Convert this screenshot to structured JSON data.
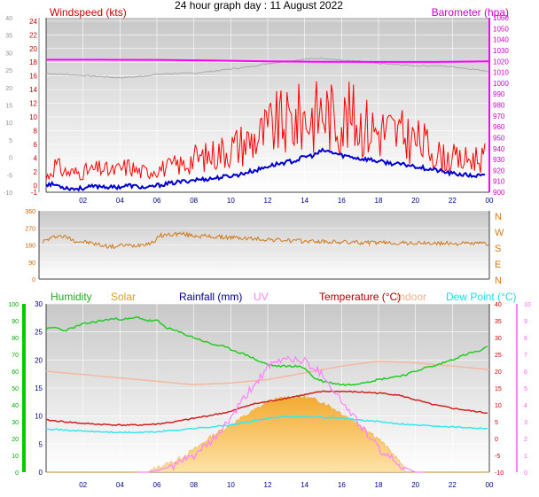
{
  "page": {
    "title": "24 hour graph day : 11 August 2022"
  },
  "colors": {
    "windspeed": "#ff0000",
    "windavg": "#0000cc",
    "barometer": "#ff00ff",
    "barohist": "#a8a8a8",
    "direction": "#d07818",
    "humidity": "#22cc22",
    "solar": "#f5b547",
    "rainfall": "#000080",
    "uv": "#ff80ff",
    "temperature": "#d02020",
    "indoor": "#f5b8a0",
    "dewpoint": "#33e8f0",
    "humidity_axis": "#00cc00",
    "plot_top": "#c8c8c8",
    "plot_bottom": "#ffffff",
    "frame": "#404040"
  },
  "chart_data": [
    {
      "id": "wind",
      "type": "line",
      "title": "",
      "left_axis_label": "Windspeed (kts)",
      "right_axis_label": "Barometer (hpa)",
      "x_ticks": [
        "02",
        "04",
        "06",
        "08",
        "10",
        "12",
        "14",
        "16",
        "18",
        "20",
        "22",
        "00"
      ],
      "y_left_ticks": [
        "-1",
        "0",
        "2",
        "4",
        "6",
        "8",
        "10",
        "12",
        "14",
        "16",
        "18",
        "20",
        "22",
        "24"
      ],
      "y_far_left_ticks": [
        "40",
        "35",
        "30",
        "25",
        "20",
        "15",
        "10",
        "5",
        "0",
        "-5",
        "-10"
      ],
      "y_right_ticks": [
        "1060",
        "1050",
        "1040",
        "1030",
        "1020",
        "1010",
        "1000",
        "990",
        "980",
        "970",
        "960",
        "950",
        "940",
        "930",
        "920",
        "910",
        "900"
      ],
      "y_left_range": [
        -1,
        24.5
      ],
      "y_right_range": [
        900,
        1060
      ],
      "x_range": [
        0,
        24
      ],
      "series": [
        {
          "name": "Windspeed (kts)",
          "x": [
            0,
            0.5,
            1,
            1.5,
            2,
            2.5,
            3,
            3.5,
            4,
            4.5,
            5,
            5.5,
            6,
            6.5,
            7,
            7.5,
            8,
            8.5,
            9,
            9.5,
            10,
            10.5,
            11,
            11.5,
            12,
            12.5,
            13,
            13.5,
            14,
            14.5,
            15,
            15.5,
            16,
            16.5,
            17,
            17.5,
            18,
            18.5,
            19,
            19.5,
            20,
            20.5,
            21,
            21.5,
            22,
            22.5,
            23
          ],
          "values": [
            1,
            3,
            2,
            1.8,
            2,
            2.2,
            2.5,
            2,
            2.4,
            2.8,
            2,
            2,
            2.5,
            2.5,
            3,
            3,
            4,
            4,
            4.5,
            5,
            5.5,
            6,
            6.5,
            7,
            8,
            9,
            9,
            9.5,
            10,
            10,
            11,
            10,
            9.5,
            10,
            9,
            8.5,
            8,
            8,
            7.5,
            7,
            6.5,
            6,
            5,
            4,
            4,
            3.5,
            4
          ]
        },
        {
          "name": "Average",
          "x": [
            0,
            0.5,
            1,
            1.5,
            2,
            2.5,
            3,
            3.5,
            4,
            4.5,
            5,
            5.5,
            6,
            6.5,
            7,
            7.5,
            8,
            8.5,
            9,
            9.5,
            10,
            10.5,
            11,
            11.5,
            12,
            12.5,
            13,
            13.5,
            14,
            14.5,
            15,
            15.5,
            16,
            16.5,
            17,
            17.5,
            18,
            18.5,
            19,
            19.5,
            20,
            20.5,
            21,
            21.5,
            22,
            22.5,
            23
          ],
          "values": [
            0.2,
            0.1,
            -0.3,
            -0.5,
            -0.4,
            -0.2,
            -0.1,
            -0.3,
            -0.2,
            0,
            -0.2,
            -0.4,
            0,
            0.2,
            0.4,
            0.6,
            0.8,
            0.9,
            1,
            1.2,
            1.4,
            1.6,
            2,
            2.3,
            2.8,
            3.1,
            3.4,
            3.6,
            4.2,
            4.4,
            5.1,
            4.8,
            4.4,
            4.2,
            3.9,
            3.8,
            3.5,
            3.3,
            3.1,
            3,
            2.8,
            2.5,
            2.3,
            2,
            1.7,
            1.6,
            1.4
          ]
        },
        {
          "name": "Barometer (hpa)",
          "x": [
            0,
            3,
            6,
            9,
            12,
            15,
            18,
            21,
            24
          ],
          "values": [
            1021.5,
            1021.5,
            1021.3,
            1020.8,
            1020,
            1019.6,
            1019.5,
            1019.5,
            1020
          ]
        },
        {
          "name": "Barometer history",
          "x": [
            0,
            1,
            2,
            3,
            4,
            5,
            6,
            7,
            8,
            9,
            10,
            11,
            12,
            13,
            14,
            15,
            16,
            17,
            18,
            19,
            20,
            21,
            22,
            23,
            24
          ],
          "values": [
            1009,
            1008,
            1007,
            1006,
            1005,
            1006,
            1008,
            1009,
            1009,
            1011,
            1013,
            1015,
            1018,
            1020,
            1022,
            1023,
            1021,
            1020,
            1018,
            1017,
            1016,
            1016,
            1015,
            1013,
            1011
          ]
        }
      ]
    },
    {
      "id": "direction",
      "type": "line",
      "title": "",
      "y_left_ticks": [
        "360",
        "270",
        "180",
        "90",
        "0"
      ],
      "y_right_ticks": [
        "N",
        "W",
        "S",
        "E",
        "N"
      ],
      "y_range": [
        0,
        360
      ],
      "x_range": [
        0,
        24
      ],
      "series": [
        {
          "name": "Wind direction",
          "x": [
            0,
            0.5,
            1,
            1.5,
            2,
            2.5,
            3,
            3.5,
            4,
            4.5,
            5,
            5.5,
            6,
            6.5,
            7,
            7.5,
            8,
            8.5,
            9,
            9.5,
            10,
            10.5,
            11,
            11.5,
            12,
            12.5,
            13,
            13.5,
            14,
            14.5,
            15,
            15.5,
            16,
            16.5,
            17,
            17.5,
            18,
            18.5,
            19,
            19.5,
            20,
            20.5,
            21,
            21.5,
            22,
            22.5,
            23,
            23.5,
            24
          ],
          "values": [
            190,
            210,
            230,
            220,
            200,
            195,
            185,
            175,
            170,
            180,
            175,
            185,
            190,
            230,
            235,
            240,
            232,
            228,
            225,
            222,
            220,
            218,
            215,
            212,
            210,
            208,
            205,
            202,
            200,
            200,
            198,
            196,
            195,
            194,
            193,
            192,
            192,
            191,
            190,
            190,
            189,
            189,
            188,
            188,
            188,
            188,
            188,
            188,
            188
          ]
        }
      ]
    },
    {
      "id": "weather",
      "type": "line",
      "title": "",
      "legend": [
        "Humidity",
        "Solar",
        "Rainfall (mm)",
        "UV",
        "Temperature (°C)",
        "Indoor",
        "Dew Point (°C)"
      ],
      "x_ticks": [
        "02",
        "04",
        "06",
        "08",
        "10",
        "12",
        "14",
        "16",
        "18",
        "20",
        "22",
        "00"
      ],
      "y_humidity_ticks": [
        "100",
        "90",
        "80",
        "70",
        "60",
        "50",
        "40",
        "30",
        "20",
        "10",
        "0"
      ],
      "y_rain_ticks": [
        "30",
        "25",
        "20",
        "15",
        "10",
        "5",
        "0"
      ],
      "y_temp_ticks": [
        "40",
        "35",
        "30",
        "25",
        "20",
        "15",
        "10",
        "5",
        "0",
        "-5",
        "-10"
      ],
      "y_uv_ticks": [
        "10",
        "9",
        "8",
        "7",
        "6",
        "5",
        "4",
        "3",
        "2",
        "1",
        "0"
      ],
      "x_range": [
        0,
        24
      ],
      "series": [
        {
          "name": "Humidity",
          "axis": "humidity",
          "x": [
            0,
            0.5,
            1,
            1.5,
            2,
            2.5,
            3,
            3.5,
            4,
            4.5,
            5,
            5.5,
            6,
            6.5,
            7,
            7.5,
            8,
            8.5,
            9,
            9.5,
            10,
            10.5,
            11,
            11.5,
            12,
            12.5,
            13,
            13.5,
            14,
            14.5,
            15,
            15.5,
            16,
            16.5,
            17,
            17.5,
            18,
            18.5,
            19,
            19.5,
            20,
            20.5,
            21,
            21.5,
            22,
            22.5,
            23,
            23.5,
            24
          ],
          "values": [
            85,
            86,
            84,
            86,
            88,
            89,
            90,
            91,
            91,
            91,
            92,
            90,
            90,
            86,
            84,
            82,
            80,
            78,
            76,
            75,
            73,
            71,
            69,
            66,
            64,
            63,
            63,
            63,
            62,
            56,
            54,
            53,
            52,
            52,
            53,
            54,
            55,
            56,
            57,
            58,
            60,
            62,
            63,
            65,
            67,
            69,
            71,
            72,
            75
          ]
        },
        {
          "name": "Solar",
          "axis": "rainfall",
          "x": [
            0,
            5.5,
            6,
            7,
            8,
            9,
            10,
            11,
            12,
            13,
            14,
            15,
            16,
            17,
            18,
            19,
            19.5,
            24
          ],
          "values": [
            0,
            0,
            0.8,
            2,
            4,
            6.5,
            8.5,
            10.5,
            12.5,
            13.4,
            13.4,
            12.5,
            10.5,
            8.5,
            6,
            2.5,
            0,
            0
          ]
        },
        {
          "name": "UV",
          "axis": "uv",
          "x": [
            0,
            5.5,
            6,
            7,
            8,
            9,
            10,
            11,
            12,
            13,
            14,
            15,
            16,
            17,
            18,
            19,
            20,
            24
          ],
          "values": [
            0,
            0,
            0.1,
            0.4,
            1,
            1.8,
            3.2,
            4.8,
            6.2,
            6.8,
            6.6,
            5.8,
            4.2,
            2.8,
            1.4,
            0.5,
            0,
            0
          ]
        },
        {
          "name": "Temperature (°C)",
          "axis": "temperature",
          "x": [
            0,
            1,
            2,
            3,
            4,
            5,
            6,
            7,
            8,
            9,
            10,
            11,
            12,
            13,
            14,
            15,
            16,
            17,
            18,
            19,
            20,
            21,
            22,
            23,
            24
          ],
          "values": [
            5.5,
            5,
            4.5,
            4.2,
            4,
            4,
            4.3,
            5,
            6,
            7,
            8,
            10,
            11,
            12,
            13,
            14,
            14,
            13.8,
            13.5,
            13,
            11.5,
            10,
            9,
            8.2,
            7.5
          ]
        },
        {
          "name": "Indoor",
          "axis": "temperature",
          "x": [
            0,
            2,
            4,
            6,
            8,
            10,
            12,
            14,
            16,
            18,
            20,
            22,
            24
          ],
          "values": [
            20,
            19,
            18,
            17,
            16,
            16.5,
            17.5,
            19.5,
            21.5,
            23,
            22.5,
            21.5,
            20.5
          ]
        },
        {
          "name": "Dew Point (°C)",
          "axis": "temperature",
          "x": [
            0,
            1,
            2,
            3,
            4,
            5,
            6,
            7,
            8,
            9,
            10,
            11,
            12,
            13,
            14,
            15,
            16,
            17,
            18,
            19,
            20,
            21,
            22,
            23,
            24
          ],
          "values": [
            3,
            2.5,
            2.2,
            2,
            1.8,
            1.8,
            2,
            2.5,
            3,
            3.5,
            4,
            5,
            6,
            6.5,
            6.5,
            6.3,
            6,
            5.5,
            5,
            4.5,
            4,
            3.8,
            3.5,
            3.2,
            3
          ]
        }
      ]
    }
  ]
}
